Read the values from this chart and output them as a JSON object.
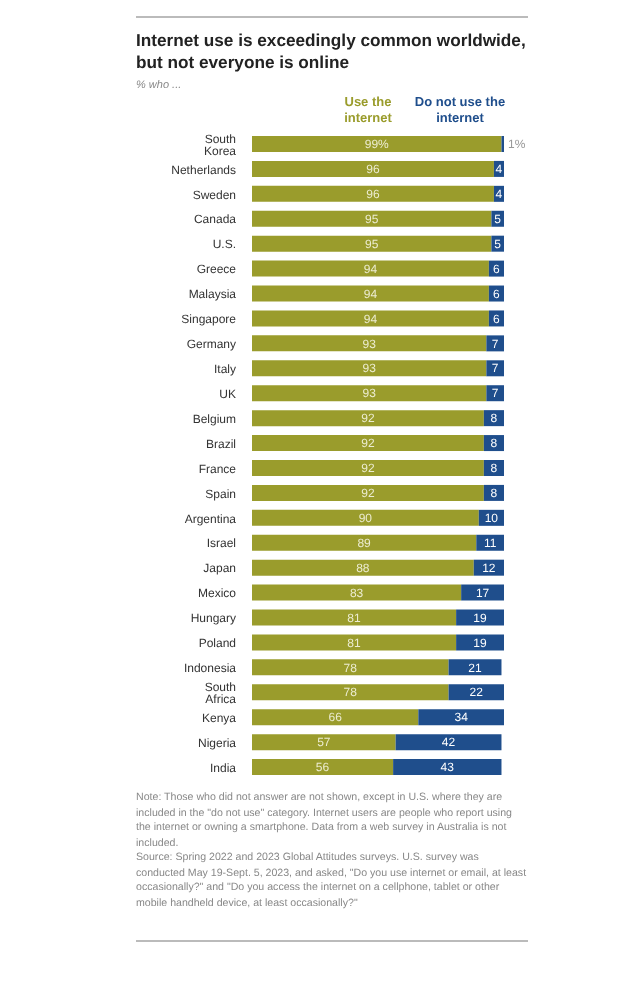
{
  "chart_data": {
    "type": "bar",
    "orientation": "horizontal",
    "stacked": true,
    "title": "Internet use is exceedingly common worldwide, but not everyone is online",
    "subtitle": "% who ...",
    "legend": "top",
    "categories": [
      "South Korea",
      "Netherlands",
      "Sweden",
      "Canada",
      "U.S.",
      "Greece",
      "Malaysia",
      "Singapore",
      "Germany",
      "Italy",
      "UK",
      "Belgium",
      "Brazil",
      "France",
      "Spain",
      "Argentina",
      "Israel",
      "Japan",
      "Mexico",
      "Hungary",
      "Poland",
      "Indonesia",
      "South Africa",
      "Kenya",
      "Nigeria",
      "India"
    ],
    "series": [
      {
        "name": "Use the internet",
        "color": "#9a9c2c",
        "values": [
          99,
          96,
          96,
          95,
          95,
          94,
          94,
          94,
          93,
          93,
          93,
          92,
          92,
          92,
          92,
          90,
          89,
          88,
          83,
          81,
          81,
          78,
          78,
          66,
          57,
          56
        ],
        "value_labels": [
          "99%",
          "96",
          "96",
          "95",
          "95",
          "94",
          "94",
          "94",
          "93",
          "93",
          "93",
          "92",
          "92",
          "92",
          "92",
          "90",
          "89",
          "88",
          "83",
          "81",
          "81",
          "78",
          "78",
          "66",
          "57",
          "56"
        ]
      },
      {
        "name": "Do not use the internet",
        "color": "#1f4e8c",
        "values": [
          1,
          4,
          4,
          5,
          5,
          6,
          6,
          6,
          7,
          7,
          7,
          8,
          8,
          8,
          8,
          10,
          11,
          12,
          17,
          19,
          19,
          21,
          22,
          34,
          42,
          43
        ],
        "value_labels": [
          "1%",
          "4",
          "4",
          "5",
          "5",
          "6",
          "6",
          "6",
          "7",
          "7",
          "7",
          "8",
          "8",
          "8",
          "8",
          "10",
          "11",
          "12",
          "17",
          "19",
          "19",
          "21",
          "22",
          "34",
          "42",
          "43"
        ]
      }
    ],
    "annotations": [
      "Note: Those who did not answer are not shown, except in U.S. where they are included in the \"do not use\" category. Internet users are people who report using the internet or owning a smartphone. Data from a web survey in Australia is not included.",
      "Source: Spring 2022 and 2023 Global Attitudes surveys. U.S. survey was conducted May 19-Sept. 5, 2023, and asked, \"Do you use internet or email, at least occasionally?\" and \"Do you access the internet on a cellphone, tablet or other mobile handheld device, at least occasionally?\""
    ]
  }
}
